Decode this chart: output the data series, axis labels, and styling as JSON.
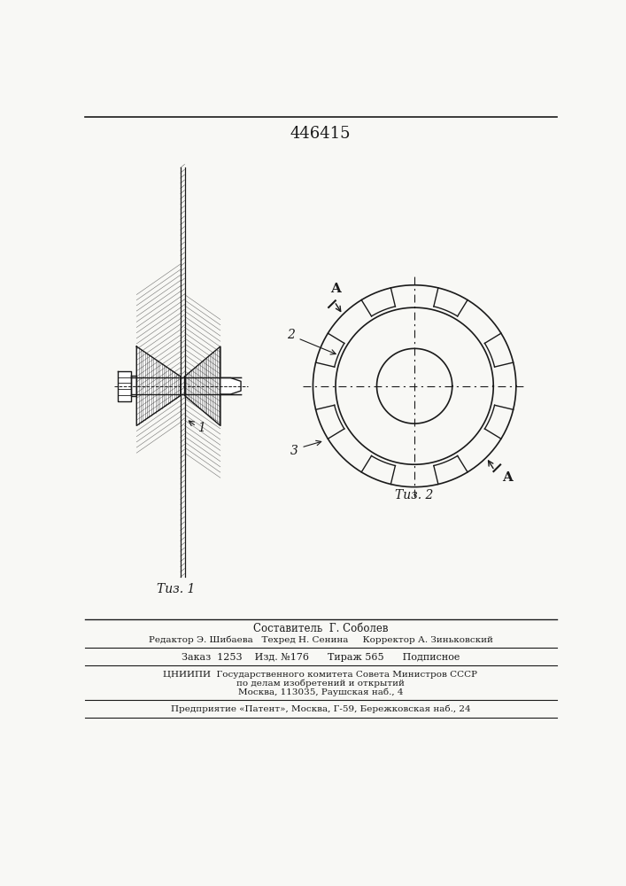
{
  "title": "446415",
  "title_fontsize": 13,
  "bg_color": "#f8f8f5",
  "line_color": "#1a1a1a",
  "fig1_label": "Τиз. 1",
  "fig2_label": "Τиз. 2",
  "label_1": "1",
  "label_2": "2",
  "label_3": "3",
  "label_A": "A",
  "footer_lines": [
    "Составитель  Г. Соболев",
    "Редактор Э. Шибаева   Техред Н. Сенина     Корректор А. Зиньковский",
    "Заказ  1253    Изд. №176      Тираж 565      Подписное",
    "ЦНИИПИ  Государственного комитета Совета Министров СССР",
    "по делам изобретений и открытий",
    "Москва, 113035, Раушская наб., 4",
    "Предприятие «Патент», Москва, Г-59, Бережковская наб., 24"
  ]
}
